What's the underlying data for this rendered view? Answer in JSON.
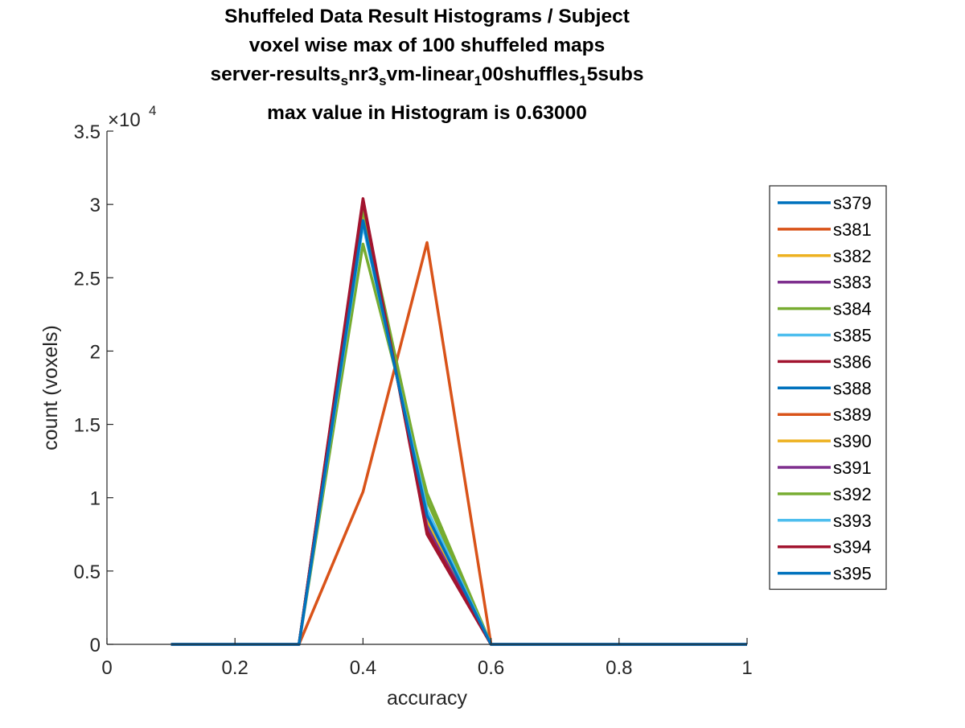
{
  "chart_data": {
    "type": "line",
    "title": [
      "Shuffeled Data Result Histograms / Subject",
      "voxel wise max of 100 shuffeled maps",
      "server-results",
      "max value in Histogram is 0.63000"
    ],
    "title_line3_parts": [
      {
        "text": "server-results",
        "sub": false
      },
      {
        "text": "s",
        "sub": true
      },
      {
        "text": "nr3",
        "sub": false
      },
      {
        "text": "s",
        "sub": true
      },
      {
        "text": "vm-linear",
        "sub": false
      },
      {
        "text": "1",
        "sub": true
      },
      {
        "text": "00shuffles",
        "sub": false
      },
      {
        "text": "1",
        "sub": true
      },
      {
        "text": "5subs",
        "sub": false
      }
    ],
    "xlabel": "accuracy",
    "ylabel": "count (voxels)",
    "xlim": [
      0,
      1
    ],
    "ylim": [
      0,
      35000
    ],
    "x_ticks": [
      0,
      0.2,
      0.4,
      0.6,
      0.8,
      1
    ],
    "x_tick_labels": [
      "0",
      "0.2",
      "0.4",
      "0.6",
      "0.8",
      "1"
    ],
    "y_ticks": [
      0,
      5000,
      10000,
      15000,
      20000,
      25000,
      30000,
      35000
    ],
    "y_tick_labels": [
      "0",
      "0.5",
      "1",
      "1.5",
      "2",
      "2.5",
      "3",
      "3.5"
    ],
    "y_exponent_label": "×10",
    "y_exponent_power": "4",
    "grid": false,
    "legend_position": "outside-right",
    "x": [
      0.1,
      0.2,
      0.3,
      0.4,
      0.5,
      0.6,
      0.7,
      0.8,
      0.9,
      1.0
    ],
    "series": [
      {
        "name": "s379",
        "color": "#0072BD",
        "values": [
          0,
          0,
          0,
          29800,
          8200,
          0,
          0,
          0,
          0,
          0
        ]
      },
      {
        "name": "s381",
        "color": "#D95319",
        "values": [
          0,
          0,
          0,
          10400,
          27400,
          0,
          0,
          0,
          0,
          0
        ]
      },
      {
        "name": "s382",
        "color": "#EDB120",
        "values": [
          0,
          0,
          0,
          29600,
          8400,
          0,
          0,
          0,
          0,
          0
        ]
      },
      {
        "name": "s383",
        "color": "#7E2F8E",
        "values": [
          0,
          0,
          0,
          30100,
          7900,
          0,
          0,
          0,
          0,
          0
        ]
      },
      {
        "name": "s384",
        "color": "#77AC30",
        "values": [
          0,
          0,
          0,
          27300,
          10300,
          0,
          0,
          0,
          0,
          0
        ]
      },
      {
        "name": "s385",
        "color": "#4DBEEE",
        "values": [
          0,
          0,
          0,
          29000,
          8900,
          0,
          0,
          0,
          0,
          0
        ]
      },
      {
        "name": "s386",
        "color": "#A2142F",
        "values": [
          0,
          0,
          0,
          30400,
          7500,
          0,
          0,
          0,
          0,
          0
        ]
      },
      {
        "name": "s388",
        "color": "#0072BD",
        "values": [
          0,
          0,
          0,
          29500,
          8400,
          0,
          0,
          0,
          0,
          0
        ]
      },
      {
        "name": "s389",
        "color": "#D95319",
        "values": [
          0,
          0,
          0,
          30000,
          7900,
          0,
          0,
          0,
          0,
          0
        ]
      },
      {
        "name": "s390",
        "color": "#EDB120",
        "values": [
          0,
          0,
          0,
          29400,
          8500,
          0,
          0,
          0,
          0,
          0
        ]
      },
      {
        "name": "s391",
        "color": "#7E2F8E",
        "values": [
          0,
          0,
          0,
          29900,
          8000,
          0,
          0,
          0,
          0,
          0
        ]
      },
      {
        "name": "s392",
        "color": "#77AC30",
        "values": [
          0,
          0,
          0,
          29700,
          9800,
          0,
          0,
          0,
          0,
          0
        ]
      },
      {
        "name": "s393",
        "color": "#4DBEEE",
        "values": [
          0,
          0,
          0,
          28600,
          9200,
          0,
          0,
          0,
          0,
          0
        ]
      },
      {
        "name": "s394",
        "color": "#A2142F",
        "values": [
          0,
          0,
          0,
          30200,
          7700,
          0,
          0,
          0,
          0,
          0
        ]
      },
      {
        "name": "s395",
        "color": "#0072BD",
        "values": [
          0,
          0,
          0,
          28900,
          8800,
          0,
          0,
          0,
          0,
          0
        ]
      }
    ]
  }
}
